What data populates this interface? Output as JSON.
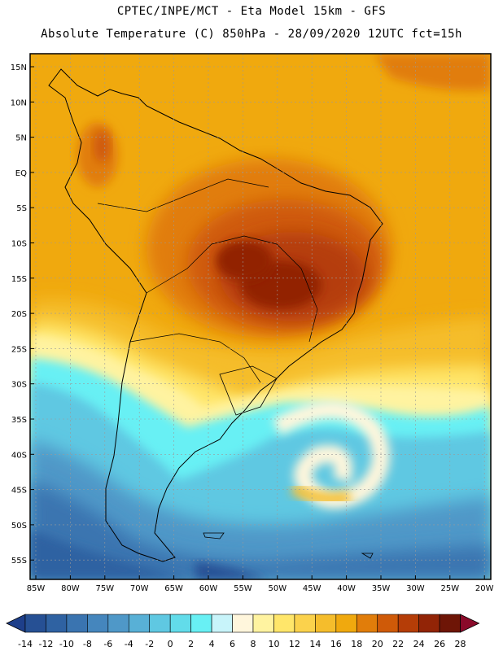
{
  "header": {
    "line1": "CPTEC/INPE/MCT -  Eta Model 15km - GFS",
    "line2": "Absolute Temperature (C) 850hPa - 28/09/2020 12UTC fct=15h"
  },
  "map": {
    "lat_labels": [
      "15N",
      "10N",
      "5N",
      "EQ",
      "5S",
      "10S",
      "15S",
      "20S",
      "25S",
      "30S",
      "35S",
      "40S",
      "45S",
      "50S",
      "55S"
    ],
    "lon_labels": [
      "85W",
      "80W",
      "75W",
      "70W",
      "65W",
      "60W",
      "55W",
      "50W",
      "45W",
      "40W",
      "35W",
      "30W",
      "25W",
      "20W"
    ]
  },
  "colorbar": {
    "labels": [
      "-14",
      "-12",
      "-10",
      "-8",
      "-6",
      "-4",
      "-2",
      "0",
      "2",
      "4",
      "6",
      "8",
      "10",
      "12",
      "14",
      "16",
      "18",
      "20",
      "22",
      "24",
      "26",
      "28"
    ],
    "colors": [
      "#1e3f8a",
      "#265094",
      "#2f62a2",
      "#3a74b0",
      "#4586bd",
      "#4f98c8",
      "#58b0d6",
      "#5fc8e2",
      "#62dcea",
      "#68f0f4",
      "#c8f4fa",
      "#fff6dc",
      "#fff3a0",
      "#ffe66a",
      "#fbd24c",
      "#f5bd2c",
      "#f0a90e",
      "#e17d0a",
      "#cf5a08",
      "#b53d07",
      "#922406",
      "#6e1506",
      "#8a0a2a"
    ]
  },
  "colors": {
    "continent_outline": "#000000",
    "grid": "#9a9a9a"
  }
}
